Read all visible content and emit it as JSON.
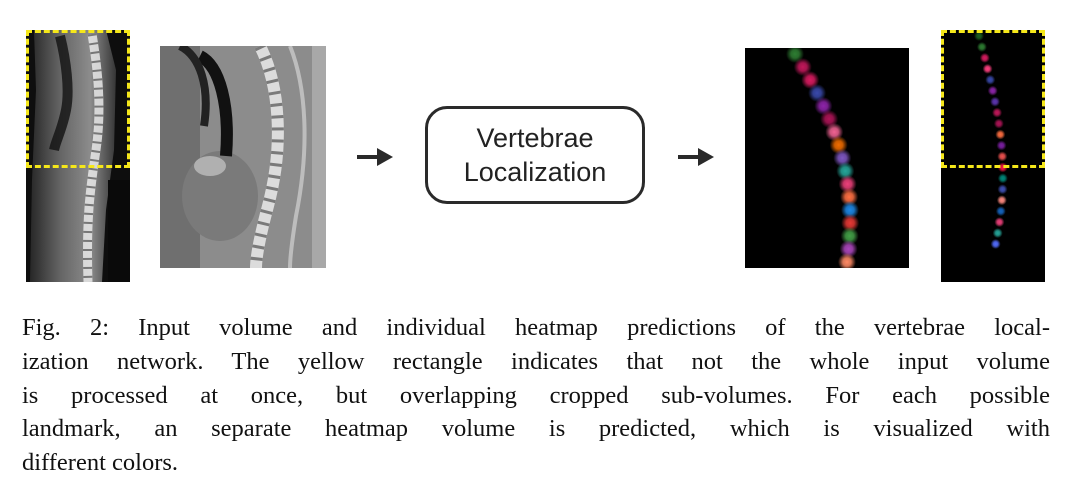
{
  "figure": {
    "box_label": "Vertebrae\nLocalization",
    "caption_lines": [
      "Fig. 2: Input volume and individual heatmap predictions of the vertebrae local-",
      "ization network. The yellow rectangle indicates that not the whole input volume",
      "is processed at once, but overlapping cropped sub-volumes. For each possible",
      "landmark, an separate heatmap volume is predicted, which is visualized with",
      "different colors."
    ]
  },
  "colors": {
    "crop_rectangle": "#f5e71a",
    "heatmap_background": "#000000"
  },
  "heatmap_points_crop": [
    "#2e7d32",
    "#c2185b",
    "#d81b60",
    "#3949ab",
    "#8e24aa",
    "#ad1457",
    "#f06292",
    "#ef6c00",
    "#7e57c2",
    "#26a69a",
    "#ec407a",
    "#ff7043",
    "#1e88e5",
    "#e53935",
    "#43a047",
    "#ab47bc",
    "#ff8a65"
  ],
  "heatmap_points_full": [
    "#1b5e20",
    "#2e7d32",
    "#d81b60",
    "#ff4081",
    "#3949ab",
    "#8e24aa",
    "#5e35b1",
    "#c2185b",
    "#ad1457",
    "#ff6e40",
    "#7b1fa2",
    "#ef5350",
    "#ff1744",
    "#00897b",
    "#3f51b5",
    "#ff8a80",
    "#1565c0",
    "#ec407a",
    "#26a69a",
    "#536dfe"
  ]
}
